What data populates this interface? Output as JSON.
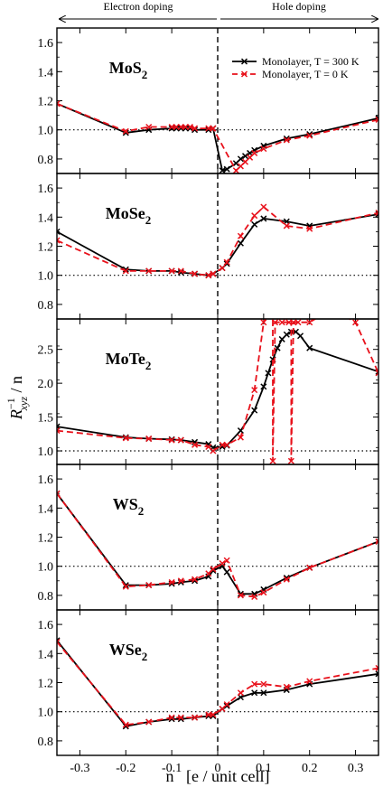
{
  "header": {
    "left_label": "Electron doping",
    "right_label": "Hole doping"
  },
  "axes": {
    "xlabel": "n   [e / unit cell]",
    "ylabel_main": "R",
    "ylabel_sup": "−1",
    "ylabel_sub": "xyz",
    "ylabel_tail": " / n"
  },
  "legend": {
    "items": [
      {
        "label": "Monolayer, T = 300 K",
        "color": "#000000",
        "dash": "none"
      },
      {
        "label": "Monolayer, T = 0 K",
        "color": "#e8111b",
        "dash": "6,4"
      }
    ]
  },
  "colors": {
    "t300": "#000000",
    "t0": "#e8111b"
  },
  "chart_data": [
    {
      "type": "line",
      "title": "MoS2",
      "title_main": "MoS",
      "title_sub": "2",
      "xlim": [
        -0.35,
        0.35
      ],
      "ylim": [
        0.7,
        1.7
      ],
      "yticks": [
        "0.8",
        "1.0",
        "1.2",
        "1.4",
        "1.6"
      ],
      "ytick_values": [
        0.8,
        1.0,
        1.2,
        1.4,
        1.6
      ],
      "reference_y": 1.0,
      "series": [
        {
          "name": "Monolayer, T = 300 K",
          "x": [
            -0.35,
            -0.2,
            -0.15,
            -0.1,
            -0.09,
            -0.08,
            -0.07,
            -0.06,
            -0.05,
            -0.02,
            -0.01,
            0.01,
            0.02,
            0.04,
            0.05,
            0.06,
            0.07,
            0.08,
            0.1,
            0.15,
            0.2,
            0.35
          ],
          "y": [
            1.18,
            0.98,
            1.0,
            1.01,
            1.01,
            1.01,
            1.01,
            1.01,
            1.0,
            1.0,
            1.01,
            0.72,
            0.73,
            0.77,
            0.8,
            0.82,
            0.84,
            0.86,
            0.89,
            0.94,
            0.97,
            1.08
          ]
        },
        {
          "name": "Monolayer, T = 0 K",
          "x": [
            -0.35,
            -0.2,
            -0.15,
            -0.1,
            -0.09,
            -0.08,
            -0.07,
            -0.06,
            -0.05,
            -0.02,
            -0.01,
            0.04,
            0.05,
            0.06,
            0.07,
            0.08,
            0.1,
            0.15,
            0.2,
            0.35
          ],
          "y": [
            1.18,
            0.99,
            1.02,
            1.02,
            1.02,
            1.02,
            1.02,
            1.02,
            1.01,
            1.01,
            1.01,
            0.72,
            0.75,
            0.78,
            0.81,
            0.84,
            0.87,
            0.93,
            0.96,
            1.07
          ]
        }
      ]
    },
    {
      "type": "line",
      "title": "MoSe2",
      "title_main": "MoSe",
      "title_sub": "2",
      "xlim": [
        -0.35,
        0.35
      ],
      "ylim": [
        0.7,
        1.7
      ],
      "yticks": [
        "0.8",
        "1.0",
        "1.2",
        "1.4",
        "1.6"
      ],
      "ytick_values": [
        0.8,
        1.0,
        1.2,
        1.4,
        1.6
      ],
      "reference_y": 1.0,
      "series": [
        {
          "name": "Monolayer, T = 300 K",
          "x": [
            -0.35,
            -0.2,
            -0.15,
            -0.1,
            -0.08,
            -0.05,
            -0.02,
            -0.01,
            0.01,
            0.02,
            0.05,
            0.08,
            0.1,
            0.15,
            0.2,
            0.35
          ],
          "y": [
            1.3,
            1.04,
            1.03,
            1.03,
            1.02,
            1.01,
            1.0,
            1.01,
            1.05,
            1.08,
            1.22,
            1.35,
            1.39,
            1.37,
            1.34,
            1.42
          ]
        },
        {
          "name": "Monolayer, T = 0 K",
          "x": [
            -0.35,
            -0.2,
            -0.15,
            -0.1,
            -0.08,
            -0.05,
            -0.02,
            -0.01,
            0.01,
            0.02,
            0.05,
            0.08,
            0.1,
            0.15,
            0.2,
            0.35
          ],
          "y": [
            1.24,
            1.03,
            1.03,
            1.03,
            1.03,
            1.01,
            1.0,
            1.01,
            1.05,
            1.09,
            1.27,
            1.41,
            1.47,
            1.34,
            1.32,
            1.43
          ]
        }
      ]
    },
    {
      "type": "line",
      "title": "MoTe2",
      "title_main": "MoTe",
      "title_sub": "2",
      "xlim": [
        -0.35,
        0.35
      ],
      "ylim": [
        0.8,
        2.95
      ],
      "yticks": [
        "1.0",
        "1.5",
        "2.0",
        "2.5"
      ],
      "ytick_values": [
        1.0,
        1.5,
        2.0,
        2.5
      ],
      "reference_y": 1.0,
      "series": [
        {
          "name": "Monolayer, T = 300 K",
          "x": [
            -0.35,
            -0.2,
            -0.15,
            -0.1,
            -0.08,
            -0.05,
            -0.02,
            -0.01,
            0.01,
            0.02,
            0.05,
            0.08,
            0.1,
            0.11,
            0.12,
            0.13,
            0.14,
            0.15,
            0.16,
            0.17,
            0.18,
            0.2,
            0.35
          ],
          "y": [
            1.36,
            1.2,
            1.18,
            1.17,
            1.16,
            1.13,
            1.1,
            1.05,
            1.06,
            1.08,
            1.3,
            1.6,
            1.95,
            2.15,
            2.35,
            2.52,
            2.65,
            2.72,
            2.76,
            2.76,
            2.7,
            2.52,
            2.17
          ]
        },
        {
          "name": "Monolayer, T = 0 K",
          "x": [
            -0.35,
            -0.2,
            -0.15,
            -0.1,
            -0.08,
            -0.05,
            -0.02,
            -0.01,
            0.01,
            0.02,
            0.05,
            0.08,
            0.1,
            0.11,
            0.115,
            0.12,
            0.12,
            0.125,
            0.14,
            0.155,
            0.16,
            0.16,
            0.165,
            0.175,
            0.2,
            0.25,
            0.3,
            0.35
          ],
          "y": [
            1.3,
            1.19,
            1.18,
            1.16,
            1.16,
            1.09,
            1.06,
            1.0,
            1.09,
            1.09,
            1.2,
            1.9,
            2.9,
            3.1,
            3.1,
            3.1,
            0.85,
            2.9,
            2.9,
            2.9,
            3.1,
            0.85,
            2.9,
            2.9,
            2.9,
            3.1,
            2.9,
            2.15
          ]
        }
      ]
    },
    {
      "type": "line",
      "title": "WS2",
      "title_main": "WS",
      "title_sub": "2",
      "xlim": [
        -0.35,
        0.35
      ],
      "ylim": [
        0.7,
        1.7
      ],
      "yticks": [
        "0.8",
        "1.0",
        "1.2",
        "1.4",
        "1.6"
      ],
      "ytick_values": [
        0.8,
        1.0,
        1.2,
        1.4,
        1.6
      ],
      "reference_y": 1.0,
      "series": [
        {
          "name": "Monolayer, T = 300 K",
          "x": [
            -0.35,
            -0.2,
            -0.15,
            -0.1,
            -0.08,
            -0.05,
            -0.02,
            -0.01,
            0.01,
            0.02,
            0.05,
            0.08,
            0.1,
            0.15,
            0.2,
            0.35
          ],
          "y": [
            1.5,
            0.87,
            0.87,
            0.88,
            0.89,
            0.9,
            0.93,
            0.97,
            1.0,
            0.96,
            0.81,
            0.81,
            0.84,
            0.92,
            0.99,
            1.17
          ]
        },
        {
          "name": "Monolayer, T = 0 K",
          "x": [
            -0.35,
            -0.2,
            -0.15,
            -0.1,
            -0.08,
            -0.05,
            -0.02,
            -0.01,
            0.01,
            0.02,
            0.05,
            0.08,
            0.1,
            0.15,
            0.2,
            0.35
          ],
          "y": [
            1.5,
            0.86,
            0.87,
            0.89,
            0.9,
            0.91,
            0.95,
            0.98,
            1.02,
            1.04,
            0.8,
            0.79,
            0.82,
            0.91,
            0.99,
            1.17
          ]
        }
      ]
    },
    {
      "type": "line",
      "title": "WSe2",
      "title_main": "WSe",
      "title_sub": "2",
      "xlim": [
        -0.35,
        0.35
      ],
      "ylim": [
        0.7,
        1.7
      ],
      "xticks": [
        "-0.3",
        "-0.2",
        "-0.1",
        "0",
        "0.1",
        "0.2",
        "0.3"
      ],
      "xtick_values": [
        -0.3,
        -0.2,
        -0.1,
        0,
        0.1,
        0.2,
        0.3
      ],
      "yticks": [
        "0.8",
        "1.0",
        "1.2",
        "1.4",
        "1.6"
      ],
      "ytick_values": [
        0.8,
        1.0,
        1.2,
        1.4,
        1.6
      ],
      "reference_y": 1.0,
      "series": [
        {
          "name": "Monolayer, T = 300 K",
          "x": [
            -0.35,
            -0.2,
            -0.15,
            -0.1,
            -0.08,
            -0.05,
            -0.02,
            -0.01,
            0.01,
            0.02,
            0.05,
            0.08,
            0.1,
            0.15,
            0.2,
            0.35
          ],
          "y": [
            1.49,
            0.9,
            0.93,
            0.95,
            0.95,
            0.96,
            0.97,
            0.97,
            1.02,
            1.04,
            1.1,
            1.13,
            1.13,
            1.15,
            1.19,
            1.26
          ]
        },
        {
          "name": "Monolayer, T = 0 K",
          "x": [
            -0.35,
            -0.2,
            -0.15,
            -0.1,
            -0.08,
            -0.05,
            -0.02,
            -0.01,
            0.01,
            0.02,
            0.05,
            0.08,
            0.1,
            0.15,
            0.2,
            0.35
          ],
          "y": [
            1.48,
            0.91,
            0.93,
            0.96,
            0.96,
            0.96,
            0.98,
            0.98,
            1.02,
            1.05,
            1.13,
            1.19,
            1.19,
            1.17,
            1.21,
            1.3
          ]
        }
      ]
    }
  ]
}
